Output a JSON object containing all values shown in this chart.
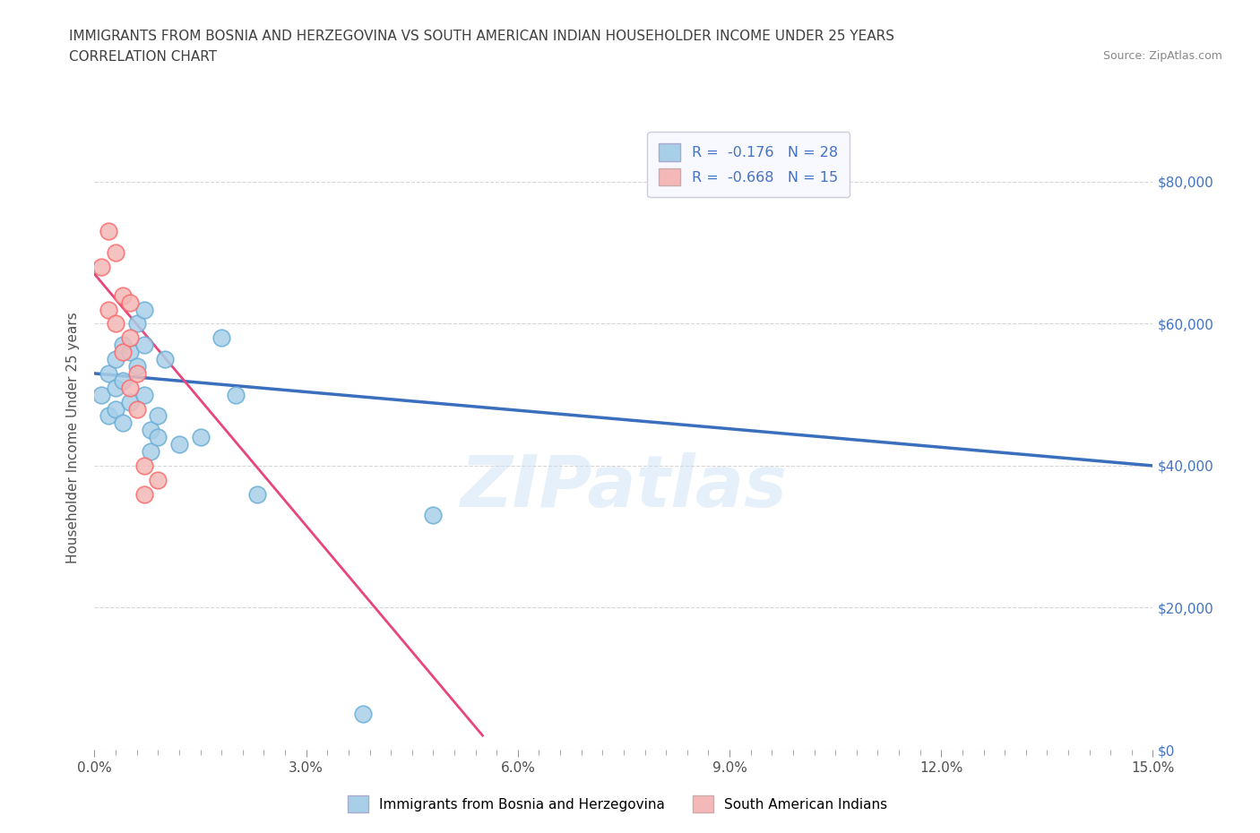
{
  "title_line1": "IMMIGRANTS FROM BOSNIA AND HERZEGOVINA VS SOUTH AMERICAN INDIAN HOUSEHOLDER INCOME UNDER 25 YEARS",
  "title_line2": "CORRELATION CHART",
  "source_text": "Source: ZipAtlas.com",
  "ylabel": "Householder Income Under 25 years",
  "xlim": [
    0.0,
    0.15
  ],
  "ylim": [
    0,
    88000
  ],
  "xtick_labels": [
    "0.0%",
    "",
    "",
    "",
    "",
    "",
    "",
    "",
    "",
    "",
    "3.0%",
    "",
    "",
    "",
    "",
    "",
    "",
    "",
    "",
    "",
    "6.0%",
    "",
    "",
    "",
    "",
    "",
    "",
    "",
    "",
    "",
    "9.0%",
    "",
    "",
    "",
    "",
    "",
    "",
    "",
    "",
    "",
    "12.0%",
    "",
    "",
    "",
    "",
    "",
    "",
    "",
    "",
    "",
    "15.0%"
  ],
  "xtick_vals": [
    0.0,
    0.003,
    0.006,
    0.009,
    0.012,
    0.015,
    0.018,
    0.021,
    0.024,
    0.027,
    0.03,
    0.033,
    0.036,
    0.039,
    0.042,
    0.045,
    0.048,
    0.051,
    0.054,
    0.057,
    0.06,
    0.063,
    0.066,
    0.069,
    0.072,
    0.075,
    0.078,
    0.081,
    0.084,
    0.087,
    0.09,
    0.093,
    0.096,
    0.099,
    0.102,
    0.105,
    0.108,
    0.111,
    0.114,
    0.117,
    0.12,
    0.123,
    0.126,
    0.129,
    0.132,
    0.135,
    0.138,
    0.141,
    0.144,
    0.147,
    0.15
  ],
  "major_xtick_labels": [
    "0.0%",
    "3.0%",
    "6.0%",
    "9.0%",
    "12.0%",
    "15.0%"
  ],
  "major_xtick_vals": [
    0.0,
    0.03,
    0.06,
    0.09,
    0.12,
    0.15
  ],
  "ytick_vals": [
    0,
    20000,
    40000,
    60000,
    80000
  ],
  "ytick_labels": [
    "$0",
    "$20,000",
    "$40,000",
    "$60,000",
    "$80,000"
  ],
  "blue_label": "Immigrants from Bosnia and Herzegovina",
  "pink_label": "South American Indians",
  "blue_R": "-0.176",
  "blue_N": "28",
  "pink_R": "-0.668",
  "pink_N": "15",
  "blue_color": "#a8cfe8",
  "pink_color": "#f4b8b8",
  "blue_edge_color": "#6baed6",
  "pink_edge_color": "#fb6b6b",
  "blue_line_color": "#3a6fbd",
  "pink_line_color": "#e8457a",
  "watermark": "ZIPatlas",
  "blue_points_x": [
    0.001,
    0.002,
    0.002,
    0.003,
    0.003,
    0.003,
    0.004,
    0.004,
    0.004,
    0.005,
    0.005,
    0.006,
    0.006,
    0.007,
    0.007,
    0.007,
    0.008,
    0.008,
    0.009,
    0.009,
    0.01,
    0.012,
    0.015,
    0.018,
    0.02,
    0.023,
    0.038,
    0.048
  ],
  "blue_points_y": [
    50000,
    53000,
    47000,
    55000,
    51000,
    48000,
    57000,
    52000,
    46000,
    56000,
    49000,
    60000,
    54000,
    62000,
    57000,
    50000,
    45000,
    42000,
    47000,
    44000,
    55000,
    43000,
    44000,
    58000,
    50000,
    36000,
    5000,
    33000
  ],
  "pink_points_x": [
    0.001,
    0.002,
    0.002,
    0.003,
    0.003,
    0.004,
    0.004,
    0.005,
    0.005,
    0.005,
    0.006,
    0.006,
    0.007,
    0.007,
    0.009
  ],
  "pink_points_y": [
    68000,
    62000,
    73000,
    70000,
    60000,
    64000,
    56000,
    63000,
    58000,
    51000,
    53000,
    48000,
    40000,
    36000,
    38000
  ],
  "blue_trend_x": [
    0.0,
    0.15
  ],
  "blue_trend_y": [
    53000,
    40000
  ],
  "pink_trend_x": [
    0.0,
    0.055
  ],
  "pink_trend_y": [
    67000,
    2000
  ],
  "background_color": "#ffffff",
  "grid_color": "#cccccc",
  "title_color": "#404040",
  "axis_label_color": "#505050",
  "right_axis_color": "#4472c4",
  "legend_label_color": "#4472c4"
}
